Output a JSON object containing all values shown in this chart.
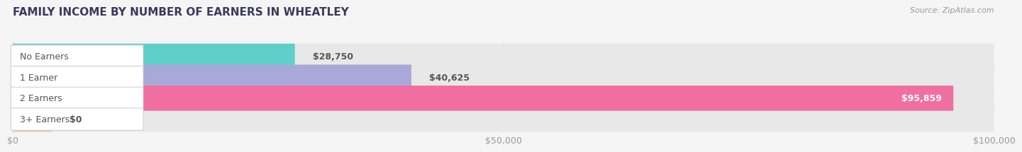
{
  "title": "FAMILY INCOME BY NUMBER OF EARNERS IN WHEATLEY",
  "source": "Source: ZipAtlas.com",
  "categories": [
    "No Earners",
    "1 Earner",
    "2 Earners",
    "3+ Earners"
  ],
  "values": [
    28750,
    40625,
    95859,
    0
  ],
  "bar_colors": [
    "#5ecfc9",
    "#a9a9d9",
    "#f06fa0",
    "#f0c898"
  ],
  "bar_labels": [
    "$28,750",
    "$40,625",
    "$95,859",
    "$0"
  ],
  "label_colors": [
    "#555555",
    "#555555",
    "#ffffff",
    "#555555"
  ],
  "xlim": [
    0,
    100000
  ],
  "xticks": [
    0,
    50000,
    100000
  ],
  "xtick_labels": [
    "$0",
    "$50,000",
    "$100,000"
  ],
  "background_color": "#f5f5f5",
  "bar_background_color": "#e8e8e8",
  "title_color": "#3a3a5c",
  "title_fontsize": 11,
  "source_fontsize": 8,
  "label_fontsize": 9,
  "xtick_fontsize": 9,
  "bar_height": 0.6,
  "zero_stub_value": 4000
}
